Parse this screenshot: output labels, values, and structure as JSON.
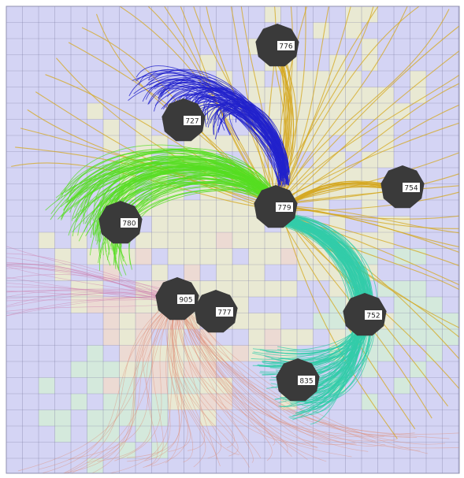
{
  "colors": {
    "background_grid_cell": "#d4d4f4",
    "grid_line": "#7a7aa0",
    "node_fill": "#3a3a3a",
    "label_box": "#ffffff",
    "flow_blue": "#2222cc",
    "flow_green": "#55dd22",
    "flow_gold": "#d4a820",
    "flow_teal": "#33ccaa",
    "flow_salmon": "#e0907a",
    "flow_pink": "#d080b0",
    "tint_yellow": "#f0f0c8",
    "tint_peach": "#f4dcc8",
    "tint_mint": "#d4f0d4"
  },
  "nodes": [
    {
      "id": "n776",
      "label": "776",
      "color_group": "gold"
    },
    {
      "id": "n727",
      "label": "727",
      "color_group": "blue"
    },
    {
      "id": "n754",
      "label": "754",
      "color_group": "gold"
    },
    {
      "id": "n779",
      "label": "779",
      "color_group": "hub"
    },
    {
      "id": "n780",
      "label": "780",
      "color_group": "green"
    },
    {
      "id": "n905",
      "label": "905",
      "color_group": "salmon"
    },
    {
      "id": "n777",
      "label": "777",
      "color_group": "salmon"
    },
    {
      "id": "n752",
      "label": "752",
      "color_group": "teal"
    },
    {
      "id": "n835",
      "label": "835",
      "color_group": "teal"
    }
  ]
}
